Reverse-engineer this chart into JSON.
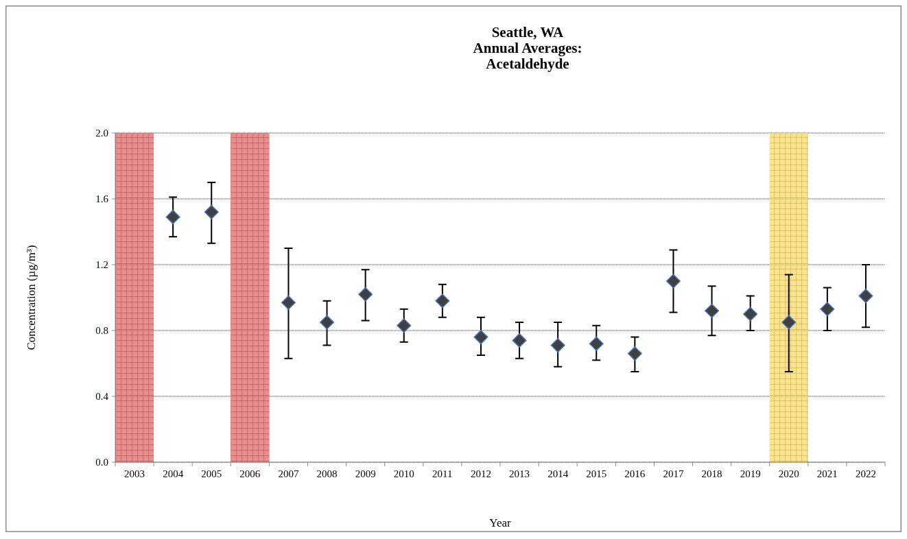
{
  "chart_data": {
    "type": "scatter",
    "title": "Seattle, WA\nAnnual Averages:\nAcetaldehyde",
    "xlabel": "Year",
    "ylabel": "Concentration (µg/m³)",
    "categories": [
      "2003",
      "2004",
      "2005",
      "2006",
      "2007",
      "2008",
      "2009",
      "2010",
      "2011",
      "2012",
      "2013",
      "2014",
      "2015",
      "2016",
      "2017",
      "2018",
      "2019",
      "2020",
      "2021",
      "2022"
    ],
    "series": [
      {
        "color": "#404040",
        "values": [
          null,
          1.49,
          1.52,
          null,
          0.97,
          0.85,
          1.02,
          0.83,
          0.98,
          0.76,
          0.74,
          0.71,
          0.72,
          0.66,
          1.1,
          0.92,
          0.9,
          0.85,
          0.93,
          1.01
        ],
        "errors": [
          null,
          [
            1.37,
            1.61
          ],
          [
            1.33,
            1.7
          ],
          null,
          [
            0.63,
            1.3
          ],
          [
            0.71,
            0.98
          ],
          [
            0.86,
            1.17
          ],
          [
            0.73,
            0.93
          ],
          [
            0.88,
            1.08
          ],
          [
            0.65,
            0.88
          ],
          [
            0.63,
            0.85
          ],
          [
            0.58,
            0.85
          ],
          [
            0.62,
            0.83
          ],
          [
            0.55,
            0.76
          ],
          [
            0.91,
            1.29
          ],
          [
            0.77,
            1.07
          ],
          [
            0.8,
            1.01
          ],
          [
            0.55,
            1.14
          ],
          [
            0.8,
            1.06
          ],
          [
            0.82,
            1.2
          ]
        ]
      }
    ],
    "bands": [
      {
        "axis": "x",
        "from": "2003",
        "to": "2003",
        "color": "#e06666"
      },
      {
        "axis": "x",
        "from": "2006",
        "to": "2006",
        "color": "#e06666"
      },
      {
        "axis": "x",
        "from": "2020",
        "to": "2020",
        "color": "#ffd966"
      }
    ],
    "ylim": [
      0,
      2
    ],
    "yticks": [
      {
        "value": 0,
        "label": "0.0"
      },
      {
        "value": 0.4,
        "label": "0.4"
      },
      {
        "value": 0.8,
        "label": "0.8"
      },
      {
        "value": 1.2,
        "label": "1.2"
      },
      {
        "value": 1.6,
        "label": "1.6"
      },
      {
        "value": 2,
        "label": "2.0"
      }
    ],
    "grid": "y",
    "marker": "diamond"
  }
}
